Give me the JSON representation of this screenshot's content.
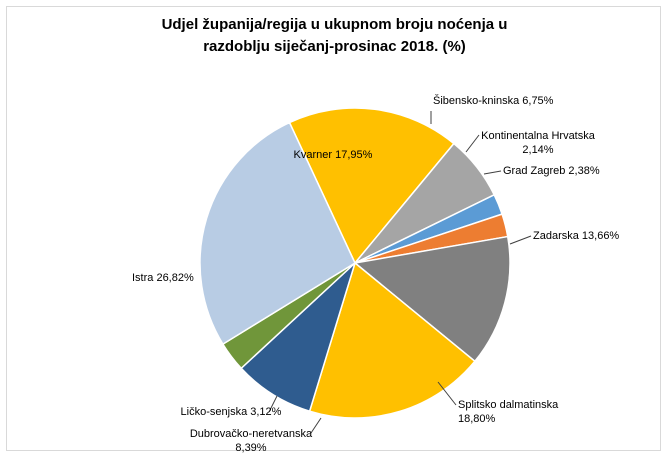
{
  "chart_data": {
    "type": "pie",
    "title_line1": "Udjel županija/regija u ukupnom broju noćenja u",
    "title_line2": "razdoblju siječanj-prosinac 2018. (%)",
    "slices": [
      {
        "label_line1": "Kvarner 17,95%",
        "label_line2": "",
        "value": 17.95,
        "color": "#ffc000"
      },
      {
        "label_line1": "Šibensko-kninska 6,75%",
        "label_line2": "",
        "value": 6.75,
        "color": "#a5a5a5"
      },
      {
        "label_line1": "Kontinentalna Hrvatska",
        "label_line2": "2,14%",
        "value": 2.14,
        "color": "#5b9bd5"
      },
      {
        "label_line1": "Grad Zagreb 2,38%",
        "label_line2": "",
        "value": 2.38,
        "color": "#ed7d31"
      },
      {
        "label_line1": "Zadarska 13,66%",
        "label_line2": "",
        "value": 13.66,
        "color": "#808080"
      },
      {
        "label_line1": "Splitsko dalmatinska",
        "label_line2": "18,80%",
        "value": 18.8,
        "color": "#ffc000"
      },
      {
        "label_line1": "Dubrovačko-neretvanska",
        "label_line2": "8,39%",
        "value": 8.39,
        "color": "#2f5c8f"
      },
      {
        "label_line1": "Ličko-senjska 3,12%",
        "label_line2": "",
        "value": 3.12,
        "color": "#70963a"
      },
      {
        "label_line1": "Istra  26,82%",
        "label_line2": "",
        "value": 26.82,
        "color": "#b8cce4"
      }
    ]
  }
}
